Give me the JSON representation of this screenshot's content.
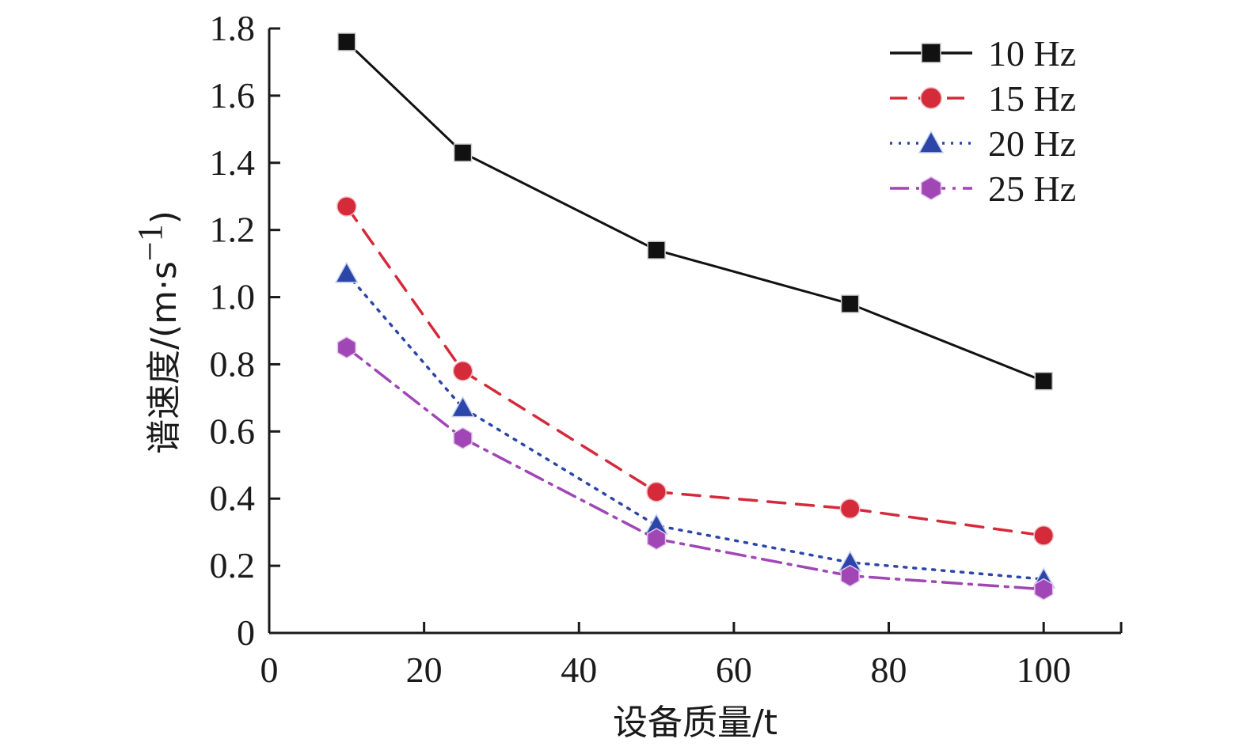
{
  "chart_data": {
    "type": "line",
    "title": "",
    "xlabel": "设备质量/t",
    "ylabel": "谱速度/(m·s",
    "ylabel_exponent": "−1",
    "ylabel_close": ")",
    "xlim": [
      0,
      110
    ],
    "ylim": [
      0,
      1.8
    ],
    "xticks": [
      0,
      20,
      40,
      60,
      80,
      100
    ],
    "xtick_labels": [
      "0",
      "20",
      "40",
      "60",
      "80",
      "100"
    ],
    "yticks": [
      0,
      0.2,
      0.4,
      0.6,
      0.8,
      1.0,
      1.2,
      1.4,
      1.6,
      1.8
    ],
    "ytick_labels": [
      "0",
      "0.2",
      "0.4",
      "0.6",
      "0.8",
      "1.0",
      "1.2",
      "1.4",
      "1.6",
      "1.8"
    ],
    "grid": false,
    "legend_position": "top-right",
    "x": [
      10,
      25,
      50,
      75,
      100
    ],
    "series": [
      {
        "name": "10 Hz",
        "values": [
          1.76,
          1.43,
          1.14,
          0.98,
          0.75
        ],
        "color": "#111111",
        "marker": "square",
        "line_style": "solid"
      },
      {
        "name": "15 Hz",
        "values": [
          1.27,
          0.78,
          0.42,
          0.37,
          0.29
        ],
        "color": "#d42a3a",
        "marker": "circle",
        "line_style": "dashed"
      },
      {
        "name": "20 Hz",
        "values": [
          1.07,
          0.67,
          0.32,
          0.21,
          0.16
        ],
        "color": "#2b46a8",
        "marker": "triangle",
        "line_style": "dotted"
      },
      {
        "name": "25 Hz",
        "values": [
          0.85,
          0.58,
          0.28,
          0.17,
          0.13
        ],
        "color": "#a046b5",
        "marker": "diamond",
        "line_style": "dashdot"
      }
    ]
  }
}
